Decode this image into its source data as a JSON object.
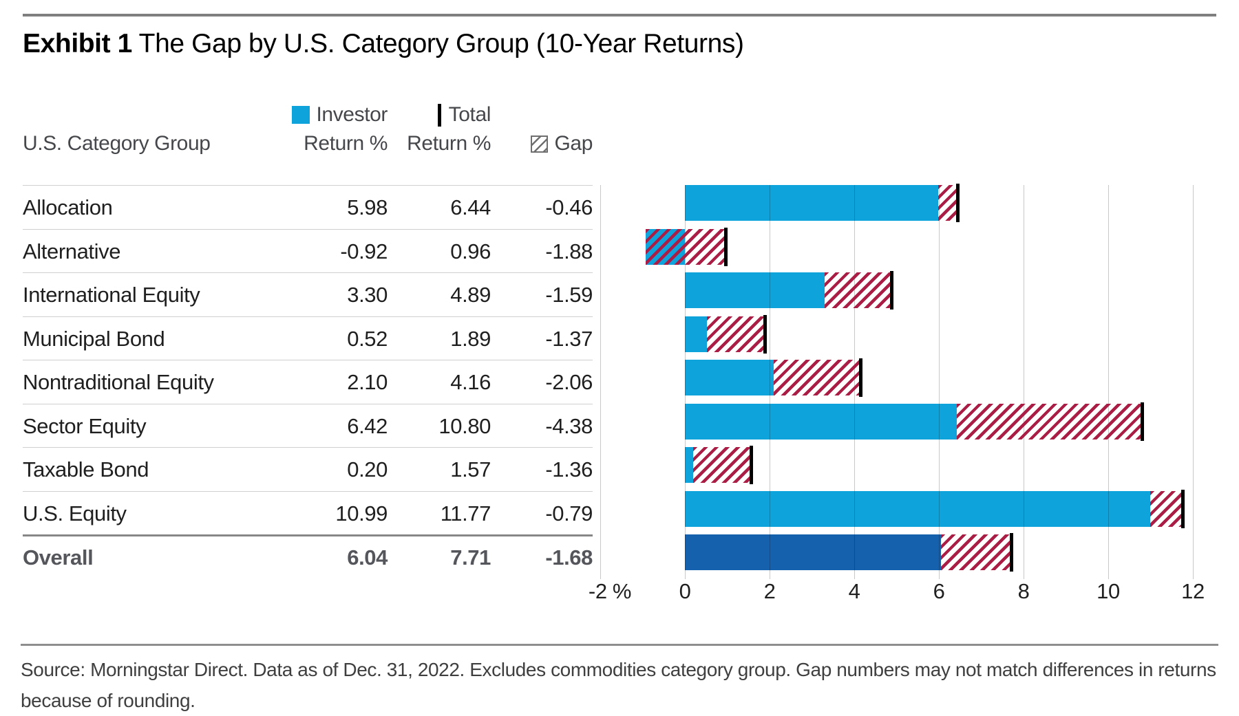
{
  "page": {
    "title_bold": "Exhibit 1",
    "title_rest": " The Gap by U.S. Category Group (10-Year Returns)",
    "footnote_line1": "Source: Morningstar Direct. Data as of Dec. 31, 2022. Excludes commodities category group. Gap numbers may not match differences in returns",
    "footnote_line2": "because of rounding."
  },
  "table": {
    "group_header": "U.S. Category Group",
    "legend": {
      "investor_line1": "Investor",
      "investor_line2": "Return %",
      "total_line1": "Total",
      "total_line2": "Return %",
      "gap_label": "Gap"
    },
    "rows": [
      {
        "name": "Allocation",
        "investor": "5.98",
        "total": "6.44",
        "gap": "-0.46",
        "emphasis": false
      },
      {
        "name": "Alternative",
        "investor": "-0.92",
        "total": "0.96",
        "gap": "-1.88",
        "emphasis": false
      },
      {
        "name": "International Equity",
        "investor": "3.30",
        "total": "4.89",
        "gap": "-1.59",
        "emphasis": false
      },
      {
        "name": "Municipal Bond",
        "investor": "0.52",
        "total": "1.89",
        "gap": "-1.37",
        "emphasis": false
      },
      {
        "name": "Nontraditional Equity",
        "investor": "2.10",
        "total": "4.16",
        "gap": "-2.06",
        "emphasis": false
      },
      {
        "name": "Sector Equity",
        "investor": "6.42",
        "total": "10.80",
        "gap": "-4.38",
        "emphasis": false
      },
      {
        "name": "Taxable Bond",
        "investor": "0.20",
        "total": "1.57",
        "gap": "-1.36",
        "emphasis": false
      },
      {
        "name": "U.S. Equity",
        "investor": "10.99",
        "total": "11.77",
        "gap": "-0.79",
        "emphasis": false
      },
      {
        "name": "Overall",
        "investor": "6.04",
        "total": "7.71",
        "gap": "-1.68",
        "emphasis": true
      }
    ]
  },
  "chart_data": {
    "type": "bar",
    "orientation": "horizontal",
    "title": "The Gap by U.S. Category Group (10-Year Returns)",
    "categories": [
      "Allocation",
      "Alternative",
      "International Equity",
      "Municipal Bond",
      "Nontraditional Equity",
      "Sector Equity",
      "Taxable Bond",
      "U.S. Equity",
      "Overall"
    ],
    "series": [
      {
        "name": "Investor Return %",
        "mark": "solid-bar",
        "values": [
          5.98,
          -0.92,
          3.3,
          0.52,
          2.1,
          6.42,
          0.2,
          10.99,
          6.04
        ]
      },
      {
        "name": "Total Return %",
        "mark": "black-tick",
        "values": [
          6.44,
          0.96,
          4.89,
          1.89,
          4.16,
          10.8,
          1.57,
          11.77,
          7.71
        ]
      },
      {
        "name": "Gap",
        "mark": "hatched-bar",
        "values": [
          -0.46,
          -1.88,
          -1.59,
          -1.37,
          -2.06,
          -4.38,
          -1.36,
          -0.79,
          -1.68
        ]
      }
    ],
    "xlim": [
      -2,
      12
    ],
    "x_ticks": [
      -2,
      0,
      2,
      4,
      6,
      8,
      10,
      12
    ],
    "x_tick_labels": [
      "-2 %",
      "0",
      "2",
      "4",
      "6",
      "8",
      "10",
      "12"
    ],
    "grid": true,
    "legend_position": "top",
    "gap_note": "hatched region spans from investor return to total return",
    "colors": {
      "investor_bar": "#0fa3dc",
      "overall_investor_bar": "#1561ad",
      "gap_hatch": "#aa1e46",
      "total_tick": "#000000",
      "gridline": "#c8c8c8"
    }
  }
}
